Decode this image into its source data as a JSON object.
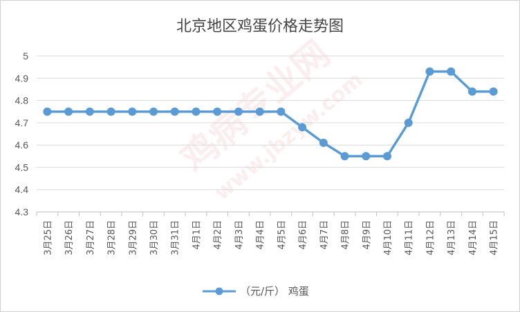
{
  "chart_data": {
    "type": "line",
    "title": "北京地区鸡蛋价格走势图",
    "categories": [
      "3月25日",
      "3月26日",
      "3月27日",
      "3月28日",
      "3月29日",
      "3月30日",
      "3月31日",
      "4月1日",
      "4月2日",
      "4月3日",
      "4月4日",
      "4月5日",
      "4月6日",
      "4月7日",
      "4月8日",
      "4月9日",
      "4月10日",
      "4月11日",
      "4月12日",
      "4月13日",
      "4月14日",
      "4月15日"
    ],
    "series": [
      {
        "name": "（元/斤） 鸡蛋",
        "values": [
          4.75,
          4.75,
          4.75,
          4.75,
          4.75,
          4.75,
          4.75,
          4.75,
          4.75,
          4.75,
          4.75,
          4.75,
          4.68,
          4.61,
          4.55,
          4.55,
          4.55,
          4.7,
          4.93,
          4.93,
          4.84,
          4.84
        ],
        "color": "#5b9bd5"
      }
    ],
    "ylim": [
      4.3,
      5
    ],
    "yticks": [
      "4.3",
      "4.4",
      "4.5",
      "4.6",
      "4.7",
      "4.8",
      "4.9",
      "5"
    ],
    "grid": true,
    "legend_position": "bottom"
  },
  "watermark": {
    "text_main": "鸡病专业网",
    "text_url": "www.jbzyw.com"
  }
}
